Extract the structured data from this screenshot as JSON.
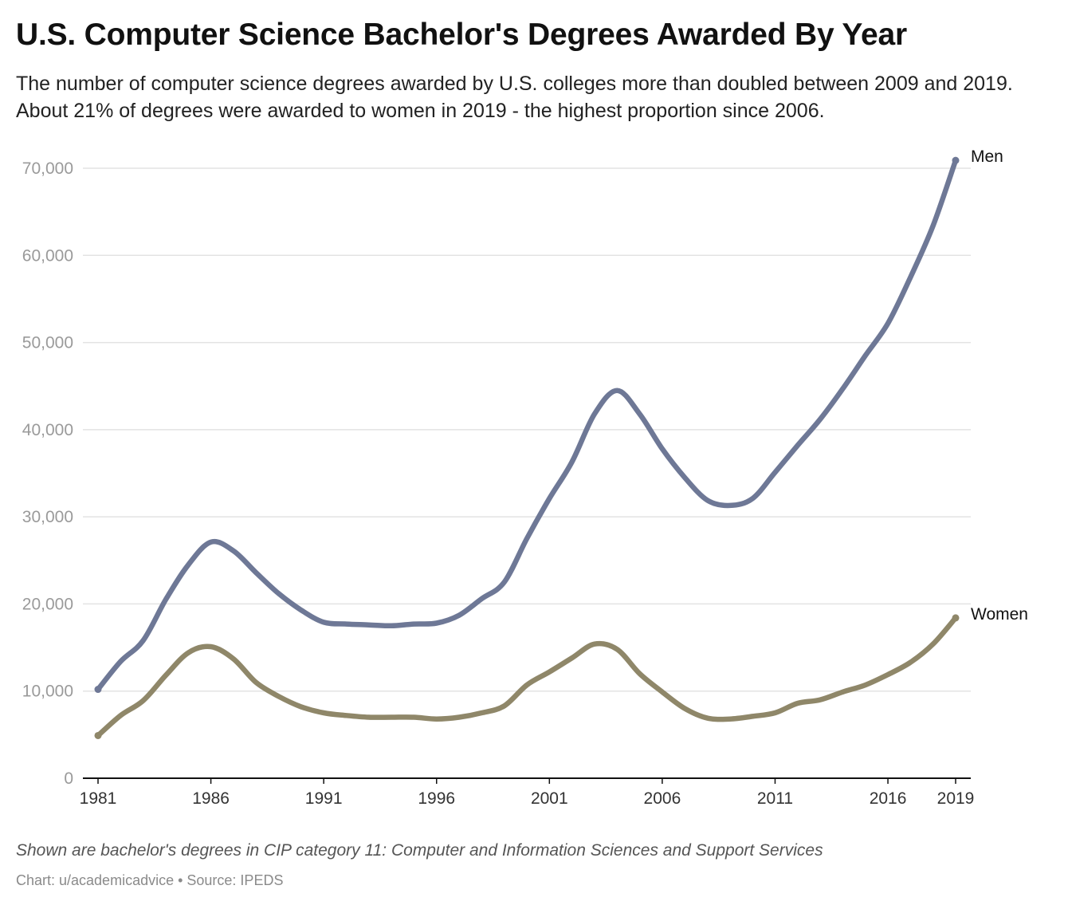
{
  "header": {
    "title": "U.S. Computer Science Bachelor's Degrees Awarded By Year",
    "subtitle": "The number of computer science degrees awarded by U.S. colleges more than doubled between 2009 and 2019. About 21% of degrees were awarded to women in 2019 - the highest proportion since 2006."
  },
  "footer": {
    "note": "Shown are bachelor's degrees in CIP category 11: Computer and Information Sciences and Support Services",
    "credit": "Chart: u/academicadvice • Source: IPEDS"
  },
  "chart_data": {
    "type": "line",
    "title": "U.S. Computer Science Bachelor's Degrees Awarded By Year",
    "xlabel": "",
    "ylabel": "",
    "x": [
      1981,
      1982,
      1983,
      1984,
      1985,
      1986,
      1987,
      1988,
      1989,
      1990,
      1991,
      1992,
      1993,
      1994,
      1995,
      1996,
      1997,
      1998,
      1999,
      2000,
      2001,
      2002,
      2003,
      2004,
      2005,
      2006,
      2007,
      2008,
      2009,
      2010,
      2011,
      2012,
      2013,
      2014,
      2015,
      2016,
      2017,
      2018,
      2019
    ],
    "xticks": [
      "1981",
      "1986",
      "1991",
      "1996",
      "2001",
      "2006",
      "2011",
      "2016",
      "2019"
    ],
    "ylim": [
      0,
      70000
    ],
    "yticks": [
      0,
      10000,
      20000,
      30000,
      40000,
      50000,
      60000,
      70000
    ],
    "ytick_labels": [
      "0",
      "10,000",
      "20,000",
      "30,000",
      "40,000",
      "50,000",
      "60,000",
      "70,000"
    ],
    "grid": true,
    "legend": "direct labels at line ends",
    "series": [
      {
        "name": "Men",
        "color": "#6e7896",
        "values": [
          10200,
          13400,
          15800,
          20500,
          24500,
          27100,
          26100,
          23600,
          21200,
          19300,
          17900,
          17700,
          17600,
          17500,
          17700,
          17800,
          18700,
          20600,
          22500,
          27500,
          32100,
          36300,
          41800,
          44500,
          41800,
          37800,
          34500,
          31900,
          31300,
          32100,
          35100,
          38200,
          41200,
          44700,
          48500,
          52200,
          57500,
          63400,
          70900
        ]
      },
      {
        "name": "Women",
        "color": "#8f8769",
        "values": [
          4900,
          7200,
          8900,
          11800,
          14400,
          15100,
          13700,
          11000,
          9400,
          8200,
          7500,
          7200,
          7000,
          7000,
          7000,
          6800,
          7000,
          7500,
          8300,
          10700,
          12200,
          13800,
          15400,
          14800,
          12000,
          9900,
          8000,
          6900,
          6800,
          7100,
          7500,
          8600,
          9000,
          9900,
          10700,
          11900,
          13300,
          15400,
          18400
        ]
      }
    ]
  }
}
